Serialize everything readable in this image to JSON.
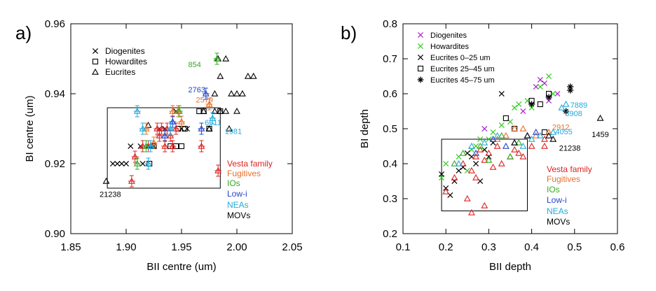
{
  "chart_data": [
    {
      "panel_label": "a)",
      "type": "scatter",
      "xlabel": "BII centre (um)",
      "ylabel": "BI centre (um)",
      "xlim": [
        1.85,
        2.05
      ],
      "ylim": [
        0.9,
        0.96
      ],
      "xticks": [
        1.85,
        1.9,
        1.95,
        2.0,
        2.05
      ],
      "yticks": [
        0.9,
        0.92,
        0.94,
        0.96
      ],
      "xtick_labels": [
        "1.85",
        "1.90",
        "1.95",
        "2.00",
        "2.05"
      ],
      "ytick_labels": [
        "0.90",
        "0.92",
        "0.94",
        "0.96"
      ],
      "box": {
        "x": [
          1.883,
          1.985
        ],
        "y": [
          0.913,
          0.936
        ]
      },
      "legend_markers": [
        {
          "label": "Diogenites",
          "marker": "x"
        },
        {
          "label": "Howardites",
          "marker": "square"
        },
        {
          "label": "Eucrites",
          "marker": "triangle"
        }
      ],
      "legend_groups": [
        {
          "label": "Vesta family",
          "color": "#dd2222"
        },
        {
          "label": "Fugitives",
          "color": "#e8702a"
        },
        {
          "label": "IOs",
          "color": "#33aa22"
        },
        {
          "label": "Low-i",
          "color": "#2244cc"
        },
        {
          "label": "NEAs",
          "color": "#22aadd"
        },
        {
          "label": "MOVs",
          "color": "#000000"
        }
      ],
      "annotations": [
        {
          "text": "854",
          "x": 1.956,
          "y": 0.9476,
          "color": "#33aa22"
        },
        {
          "text": "2763",
          "x": 1.956,
          "y": 0.9404,
          "color": "#2244cc"
        },
        {
          "text": "2579",
          "x": 1.963,
          "y": 0.9375,
          "color": "#e8702a"
        },
        {
          "text": "6611",
          "x": 1.971,
          "y": 0.931,
          "color": "#22aadd"
        },
        {
          "text": "1981",
          "x": 1.989,
          "y": 0.9285,
          "color": "#22aadd"
        },
        {
          "text": "21238",
          "x": 1.876,
          "y": 0.9105,
          "color": "#000000"
        }
      ],
      "series": [
        {
          "name": "Diogenites",
          "marker": "x",
          "color": "#000000",
          "x": [
            1.888,
            1.892,
            1.896,
            1.9,
            1.904,
            1.913,
            1.915,
            1.92,
            1.925,
            1.93,
            1.935,
            1.945,
            1.95,
            1.955
          ],
          "y": [
            0.92,
            0.92,
            0.92,
            0.92,
            0.925,
            0.925,
            0.92,
            0.925,
            0.925,
            0.93,
            0.93,
            0.935,
            0.93,
            0.93
          ]
        },
        {
          "name": "Howardites",
          "marker": "square",
          "color": "#000000",
          "x": [
            1.921,
            1.925,
            1.94,
            1.945,
            1.947,
            1.95,
            1.953,
            1.966,
            1.97,
            1.975,
            1.985
          ],
          "y": [
            0.92,
            0.925,
            0.925,
            0.925,
            0.93,
            0.925,
            0.93,
            0.935,
            0.935,
            0.93,
            0.935
          ]
        },
        {
          "name": "Eucrites",
          "marker": "triangle",
          "color": "#000000",
          "x": [
            1.882,
            1.92,
            1.975,
            1.983,
            1.99,
            1.985,
            1.995,
            2.0,
            2.005,
            2.01,
            2.015,
            1.98,
            1.99,
            2.0,
            1.985,
            1.98,
            1.993,
            1.975,
            1.97
          ],
          "y": [
            0.915,
            0.931,
            0.93,
            0.95,
            0.95,
            0.945,
            0.94,
            0.94,
            0.94,
            0.945,
            0.945,
            0.94,
            0.935,
            0.935,
            0.935,
            0.935,
            0.93,
            0.93,
            0.935
          ]
        },
        {
          "name": "Vesta family",
          "marker": "triangle-err",
          "color": "#dd2222",
          "x": [
            1.905,
            1.908,
            1.915,
            1.92,
            1.928,
            1.93,
            1.932,
            1.935,
            1.937,
            1.94,
            1.942,
            1.945,
            1.968,
            1.983
          ],
          "y": [
            0.915,
            0.922,
            0.925,
            0.925,
            0.93,
            0.928,
            0.93,
            0.925,
            0.93,
            0.928,
            0.925,
            0.93,
            0.925,
            0.918
          ]
        },
        {
          "name": "Fugitives",
          "marker": "triangle-err",
          "color": "#e8702a",
          "x": [
            1.918,
            1.925,
            1.942,
            1.947,
            1.95,
            1.975
          ],
          "y": [
            0.93,
            0.926,
            0.935,
            0.935,
            0.932,
            0.937
          ]
        },
        {
          "name": "IOs",
          "marker": "triangle-err",
          "color": "#33aa22",
          "x": [
            1.91,
            1.918,
            1.948,
            1.982
          ],
          "y": [
            0.92,
            0.925,
            0.935,
            0.95
          ]
        },
        {
          "name": "Low-i",
          "marker": "triangle-err",
          "color": "#2244cc",
          "x": [
            1.935,
            1.942,
            1.968,
            1.972
          ],
          "y": [
            0.928,
            0.932,
            0.93,
            0.94
          ]
        },
        {
          "name": "NEAs",
          "marker": "triangle-err",
          "color": "#22aadd",
          "x": [
            1.91,
            1.915,
            1.92,
            1.922,
            1.94,
            1.978
          ],
          "y": [
            0.935,
            0.93,
            0.92,
            0.925,
            0.93,
            0.933
          ]
        }
      ]
    },
    {
      "panel_label": "b)",
      "type": "scatter",
      "xlabel": "BII depth",
      "ylabel": "BI depth",
      "xlim": [
        0.1,
        0.6
      ],
      "ylim": [
        0.2,
        0.8
      ],
      "xticks": [
        0.1,
        0.2,
        0.3,
        0.4,
        0.5,
        0.6
      ],
      "yticks": [
        0.2,
        0.3,
        0.4,
        0.5,
        0.6,
        0.7,
        0.8
      ],
      "xtick_labels": [
        "0.1",
        "0.2",
        "0.3",
        "0.4",
        "0.5",
        "0.6"
      ],
      "ytick_labels": [
        "0.2",
        "0.3",
        "0.4",
        "0.5",
        "0.6",
        "0.7",
        "0.8"
      ],
      "box": {
        "x": [
          0.19,
          0.39
        ],
        "y": [
          0.265,
          0.47
        ]
      },
      "legend_markers": [
        {
          "label": "Diogenites",
          "marker": "x",
          "color": "#aa22cc"
        },
        {
          "label": "Howardites",
          "marker": "x",
          "color": "#33cc22"
        },
        {
          "label": "Eucrites  0–25 um",
          "marker": "x",
          "color": "#000000"
        },
        {
          "label": "Eucrites  25–45 um",
          "marker": "square",
          "color": "#000000"
        },
        {
          "label": "Eucrites  45–75 um",
          "marker": "star",
          "color": "#000000"
        }
      ],
      "legend_groups": [
        {
          "label": "Vesta family",
          "color": "#dd2222"
        },
        {
          "label": "Fugitives",
          "color": "#e8702a"
        },
        {
          "label": "IOs",
          "color": "#33aa22"
        },
        {
          "label": "Low-i",
          "color": "#2244cc"
        },
        {
          "label": "NEAs",
          "color": "#22aadd"
        },
        {
          "label": "MOVs",
          "color": "#000000"
        }
      ],
      "annotations": [
        {
          "text": "7889",
          "x": 0.49,
          "y": 0.56,
          "color": "#22aadd"
        },
        {
          "text": "3908",
          "x": 0.478,
          "y": 0.536,
          "color": "#22aadd"
        },
        {
          "text": "2912",
          "x": 0.448,
          "y": 0.497,
          "color": "#e8702a"
        },
        {
          "text": "4055",
          "x": 0.455,
          "y": 0.484,
          "color": "#22aadd"
        },
        {
          "text": "21238",
          "x": 0.464,
          "y": 0.437,
          "color": "#000000"
        },
        {
          "text": "1459",
          "x": 0.54,
          "y": 0.476,
          "color": "#000000"
        }
      ],
      "series": [
        {
          "name": "Diogenites",
          "marker": "x",
          "color": "#aa22cc",
          "x": [
            0.29,
            0.38,
            0.41,
            0.42,
            0.43,
            0.44,
            0.46
          ],
          "y": [
            0.5,
            0.55,
            0.62,
            0.64,
            0.63,
            0.58,
            0.6
          ]
        },
        {
          "name": "Howardites",
          "marker": "x",
          "color": "#33cc22",
          "x": [
            0.19,
            0.2,
            0.23,
            0.25,
            0.26,
            0.27,
            0.28,
            0.29,
            0.3,
            0.31,
            0.33,
            0.35,
            0.36,
            0.37,
            0.39,
            0.4,
            0.42,
            0.44,
            0.45
          ],
          "y": [
            0.36,
            0.4,
            0.42,
            0.38,
            0.44,
            0.45,
            0.47,
            0.44,
            0.47,
            0.49,
            0.51,
            0.52,
            0.56,
            0.57,
            0.58,
            0.56,
            0.62,
            0.65,
            0.6
          ]
        },
        {
          "name": "Eucrites 0-25 um",
          "marker": "x",
          "color": "#000000",
          "x": [
            0.19,
            0.2,
            0.21,
            0.22,
            0.23,
            0.24,
            0.25,
            0.26,
            0.27,
            0.28,
            0.29,
            0.3,
            0.31,
            0.33
          ],
          "y": [
            0.37,
            0.33,
            0.31,
            0.35,
            0.38,
            0.39,
            0.43,
            0.42,
            0.4,
            0.35,
            0.44,
            0.42,
            0.46,
            0.6
          ]
        },
        {
          "name": "Eucrites 25-45 um",
          "marker": "square",
          "color": "#000000",
          "x": [
            0.34,
            0.36,
            0.4,
            0.42,
            0.43,
            0.44
          ],
          "y": [
            0.53,
            0.5,
            0.58,
            0.57,
            0.49,
            0.6
          ]
        },
        {
          "name": "Eucrites 45-75 um",
          "marker": "star",
          "color": "#000000",
          "x": [
            0.4,
            0.44,
            0.48,
            0.49,
            0.49
          ],
          "y": [
            0.57,
            0.59,
            0.55,
            0.62,
            0.61
          ]
        },
        {
          "name": "Vesta family",
          "marker": "triangle",
          "color": "#dd2222",
          "x": [
            0.2,
            0.22,
            0.24,
            0.26,
            0.27,
            0.28,
            0.29,
            0.3,
            0.31,
            0.32,
            0.33,
            0.35,
            0.36,
            0.37,
            0.38,
            0.4,
            0.43,
            0.43,
            0.25,
            0.26,
            0.27,
            0.29
          ],
          "y": [
            0.32,
            0.36,
            0.4,
            0.38,
            0.42,
            0.44,
            0.41,
            0.43,
            0.39,
            0.45,
            0.4,
            0.42,
            0.44,
            0.43,
            0.42,
            0.45,
            0.45,
            0.47,
            0.3,
            0.26,
            0.36,
            0.28
          ]
        },
        {
          "name": "Fugitives",
          "marker": "triangle",
          "color": "#e8702a",
          "x": [
            0.32,
            0.34,
            0.36,
            0.38,
            0.41,
            0.44
          ],
          "y": [
            0.47,
            0.48,
            0.5,
            0.5,
            0.48,
            0.49
          ]
        },
        {
          "name": "IOs",
          "marker": "triangle",
          "color": "#33aa22",
          "x": [
            0.22,
            0.24,
            0.28,
            0.3,
            0.33,
            0.35,
            0.37
          ],
          "y": [
            0.4,
            0.43,
            0.45,
            0.41,
            0.48,
            0.42,
            0.46
          ]
        },
        {
          "name": "Low-i",
          "marker": "triangle",
          "color": "#2244cc",
          "x": [
            0.27,
            0.31,
            0.34,
            0.39,
            0.41
          ],
          "y": [
            0.43,
            0.47,
            0.45,
            0.48,
            0.49
          ]
        },
        {
          "name": "NEAs",
          "marker": "triangle",
          "color": "#22aadd",
          "x": [
            0.23,
            0.26,
            0.29,
            0.32,
            0.36,
            0.38,
            0.4,
            0.42,
            0.45,
            0.47,
            0.48
          ],
          "y": [
            0.4,
            0.45,
            0.46,
            0.48,
            0.46,
            0.45,
            0.47,
            0.48,
            0.49,
            0.56,
            0.57
          ]
        },
        {
          "name": "MOVs",
          "marker": "triangle",
          "color": "#000000",
          "x": [
            0.36,
            0.39,
            0.44,
            0.45,
            0.56
          ],
          "y": [
            0.46,
            0.48,
            0.48,
            0.47,
            0.53
          ]
        }
      ]
    }
  ]
}
